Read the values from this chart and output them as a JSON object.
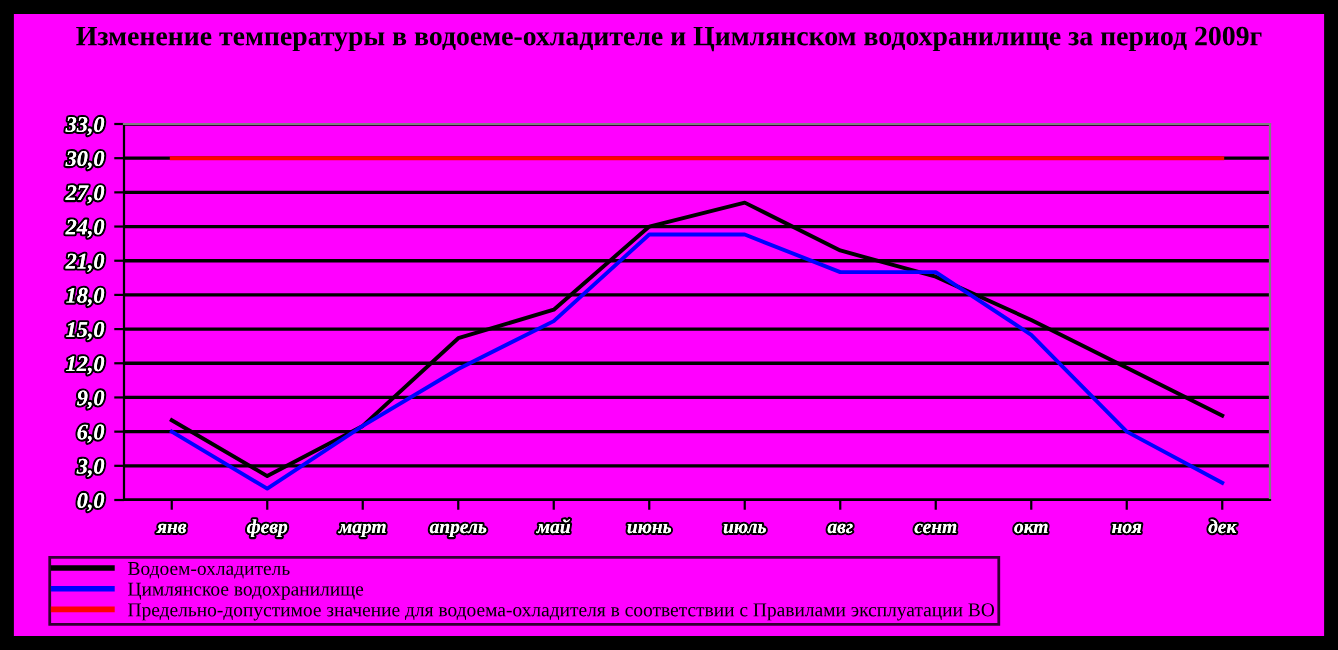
{
  "chart_data": {
    "type": "line",
    "title": "Изменение температуры в водоеме-охладителе и Цимлянском водохранилище за период 2009г",
    "categories": [
      "янв",
      "февр",
      "март",
      "апрель",
      "май",
      "июнь",
      "июль",
      "авг",
      "сент",
      "окт",
      "ноя",
      "дек"
    ],
    "series": [
      {
        "name": "Водоем-охладитель",
        "color": "#000000",
        "values": [
          7.0,
          2.1,
          6.5,
          14.2,
          16.7,
          24.0,
          26.1,
          21.9,
          19.6,
          15.8,
          11.6,
          7.4
        ]
      },
      {
        "name": "Цимлянское водохранилище",
        "color": "#0000ff",
        "values": [
          6.0,
          1.0,
          6.5,
          11.5,
          15.7,
          23.3,
          23.3,
          20.0,
          20.0,
          14.5,
          6.0,
          1.5
        ]
      },
      {
        "name": "Предельно-допустимое значение для водоема-охладителя в соответствии с Правилами эксплуатации ВО",
        "color": "#ff0000",
        "values": [
          30,
          30,
          30,
          30,
          30,
          30,
          30,
          30,
          30,
          30,
          30,
          30
        ]
      }
    ],
    "ylim": [
      0,
      33
    ],
    "yticks": [
      {
        "value": 0,
        "label": "0,0"
      },
      {
        "value": 3,
        "label": "3,0"
      },
      {
        "value": 6,
        "label": "6,0"
      },
      {
        "value": 9,
        "label": "9,0"
      },
      {
        "value": 12,
        "label": "12,0"
      },
      {
        "value": 15,
        "label": "15,0"
      },
      {
        "value": 18,
        "label": "18,0"
      },
      {
        "value": 21,
        "label": "21,0"
      },
      {
        "value": 24,
        "label": "24,0"
      },
      {
        "value": 27,
        "label": "27,0"
      },
      {
        "value": 30,
        "label": "30,0"
      },
      {
        "value": 33,
        "label": "33,0"
      }
    ],
    "grid": "y",
    "legend": "bottom",
    "marker": "none",
    "line_style": "solid"
  }
}
